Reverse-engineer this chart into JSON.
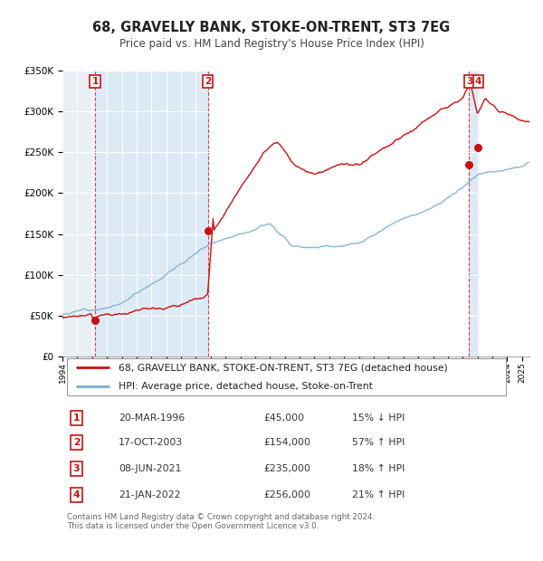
{
  "title": "68, GRAVELLY BANK, STOKE-ON-TRENT, ST3 7EG",
  "subtitle": "Price paid vs. HM Land Registry's House Price Index (HPI)",
  "hpi_color": "#7bafd4",
  "price_color": "#cc1111",
  "bg_color": "#e8f0f8",
  "hatch_color": "#c8d8e8",
  "plot_bg": "#ffffff",
  "ylim": [
    0,
    350000
  ],
  "xlim_start": 1994.0,
  "xlim_end": 2025.5,
  "yticks": [
    0,
    50000,
    100000,
    150000,
    200000,
    250000,
    300000,
    350000
  ],
  "xticks": [
    1994,
    1995,
    1996,
    1997,
    1998,
    1999,
    2000,
    2001,
    2002,
    2003,
    2004,
    2005,
    2006,
    2007,
    2008,
    2009,
    2010,
    2011,
    2012,
    2013,
    2014,
    2015,
    2016,
    2017,
    2018,
    2019,
    2020,
    2021,
    2022,
    2023,
    2024,
    2025
  ],
  "sale_dates": [
    1996.22,
    2003.8,
    2021.44,
    2022.05
  ],
  "sale_prices": [
    45000,
    154000,
    235000,
    256000
  ],
  "sale_labels": [
    "1",
    "2",
    "3",
    "4"
  ],
  "legend_label_price": "68, GRAVELLY BANK, STOKE-ON-TRENT, ST3 7EG (detached house)",
  "legend_label_hpi": "HPI: Average price, detached house, Stoke-on-Trent",
  "table_rows": [
    [
      "1",
      "20-MAR-1996",
      "£45,000",
      "15% ↓ HPI"
    ],
    [
      "2",
      "17-OCT-2003",
      "£154,000",
      "57% ↑ HPI"
    ],
    [
      "3",
      "08-JUN-2021",
      "£235,000",
      "18% ↑ HPI"
    ],
    [
      "4",
      "21-JAN-2022",
      "£256,000",
      "21% ↑ HPI"
    ]
  ],
  "footer": "Contains HM Land Registry data © Crown copyright and database right 2024.\nThis data is licensed under the Open Government Licence v3.0."
}
